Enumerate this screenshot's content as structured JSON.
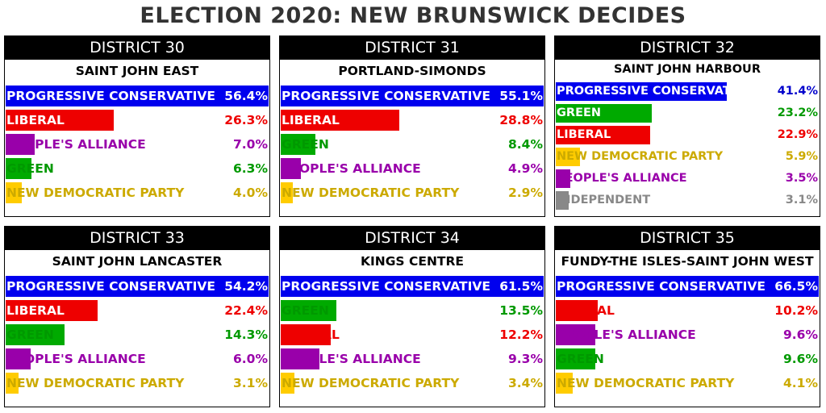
{
  "title": "ELECTION 2020: NEW BRUNSWICK DECIDES",
  "colors": {
    "PROGRESSIVE CONSERVATIVE": "#0000ee",
    "LIBERAL": "#ee0000",
    "GREEN": "#00aa00",
    "PEOPLE'S ALLIANCE": "#9900aa",
    "NEW DEMOCRATIC PARTY": "#ffcc00",
    "INDEPENDENT": "#888888"
  },
  "text_colors": {
    "PROGRESSIVE CONSERVATIVE": "#0000cc",
    "LIBERAL": "#ee0000",
    "GREEN": "#009900",
    "PEOPLE'S ALLIANCE": "#9900aa",
    "NEW DEMOCRATIC PARTY": "#ccaa00",
    "INDEPENDENT": "#888888"
  },
  "chart_data": [
    {
      "type": "bar",
      "district": "DISTRICT 30",
      "name": "SAINT JOHN EAST",
      "results": [
        {
          "party": "PROGRESSIVE CONSERVATIVE",
          "value": 56.4,
          "label": "56.4%"
        },
        {
          "party": "LIBERAL",
          "value": 26.3,
          "label": "26.3%"
        },
        {
          "party": "PEOPLE'S ALLIANCE",
          "value": 7.0,
          "label": "7.0%"
        },
        {
          "party": "GREEN",
          "value": 6.3,
          "label": "6.3%"
        },
        {
          "party": "NEW DEMOCRATIC PARTY",
          "value": 4.0,
          "label": "4.0%"
        }
      ]
    },
    {
      "type": "bar",
      "district": "DISTRICT 31",
      "name": "PORTLAND-SIMONDS",
      "results": [
        {
          "party": "PROGRESSIVE CONSERVATIVE",
          "value": 55.1,
          "label": "55.1%"
        },
        {
          "party": "LIBERAL",
          "value": 28.8,
          "label": "28.8%"
        },
        {
          "party": "GREEN",
          "value": 8.4,
          "label": "8.4%"
        },
        {
          "party": "PEOPLE'S ALLIANCE",
          "value": 4.9,
          "label": "4.9%"
        },
        {
          "party": "NEW DEMOCRATIC PARTY",
          "value": 2.9,
          "label": "2.9%"
        }
      ]
    },
    {
      "type": "bar",
      "district": "DISTRICT 32",
      "name": "SAINT JOHN HARBOUR",
      "results": [
        {
          "party": "PROGRESSIVE CONSERVATIVE",
          "value": 41.4,
          "label": "41.4%"
        },
        {
          "party": "GREEN",
          "value": 23.2,
          "label": "23.2%"
        },
        {
          "party": "LIBERAL",
          "value": 22.9,
          "label": "22.9%"
        },
        {
          "party": "NEW DEMOCRATIC PARTY",
          "value": 5.9,
          "label": "5.9%"
        },
        {
          "party": "PEOPLE'S ALLIANCE",
          "value": 3.5,
          "label": "3.5%"
        },
        {
          "party": "INDEPENDENT",
          "value": 3.1,
          "label": "3.1%"
        }
      ]
    },
    {
      "type": "bar",
      "district": "DISTRICT 33",
      "name": "SAINT JOHN LANCASTER",
      "results": [
        {
          "party": "PROGRESSIVE CONSERVATIVE",
          "value": 54.2,
          "label": "54.2%"
        },
        {
          "party": "LIBERAL",
          "value": 22.4,
          "label": "22.4%"
        },
        {
          "party": "GREEN",
          "value": 14.3,
          "label": "14.3%"
        },
        {
          "party": "PEOPLE'S ALLIANCE",
          "value": 6.0,
          "label": "6.0%"
        },
        {
          "party": "NEW DEMOCRATIC PARTY",
          "value": 3.1,
          "label": "3.1%"
        }
      ]
    },
    {
      "type": "bar",
      "district": "DISTRICT 34",
      "name": "KINGS CENTRE",
      "results": [
        {
          "party": "PROGRESSIVE CONSERVATIVE",
          "value": 61.5,
          "label": "61.5%"
        },
        {
          "party": "GREEN",
          "value": 13.5,
          "label": "13.5%"
        },
        {
          "party": "LIBERAL",
          "value": 12.2,
          "label": "12.2%"
        },
        {
          "party": "PEOPLE'S ALLIANCE",
          "value": 9.3,
          "label": "9.3%"
        },
        {
          "party": "NEW DEMOCRATIC PARTY",
          "value": 3.4,
          "label": "3.4%"
        }
      ]
    },
    {
      "type": "bar",
      "district": "DISTRICT 35",
      "name": "FUNDY-THE ISLES-SAINT JOHN WEST",
      "results": [
        {
          "party": "PROGRESSIVE CONSERVATIVE",
          "value": 66.5,
          "label": "66.5%"
        },
        {
          "party": "LIBERAL",
          "value": 10.2,
          "label": "10.2%"
        },
        {
          "party": "PEOPLE'S ALLIANCE",
          "value": 9.6,
          "label": "9.6%"
        },
        {
          "party": "GREEN",
          "value": 9.6,
          "label": "9.6%"
        },
        {
          "party": "NEW DEMOCRATIC PARTY",
          "value": 4.1,
          "label": "4.1%"
        }
      ]
    }
  ]
}
